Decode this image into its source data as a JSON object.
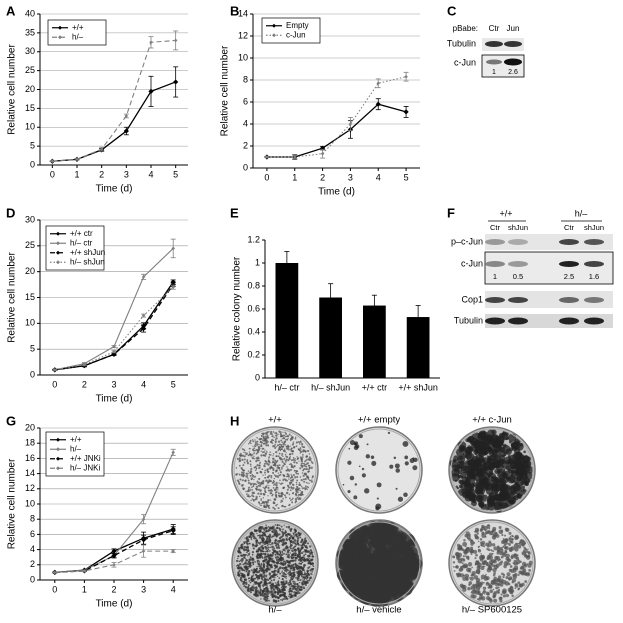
{
  "chart_data": [
    {
      "type": "line",
      "panel": "A",
      "y_label": "Relative cell number",
      "x_label": "Time (d)",
      "x": [
        0,
        1,
        2,
        3,
        4,
        5
      ],
      "xlim": [
        -0.5,
        5.5
      ],
      "xticks": [
        0,
        1,
        2,
        3,
        4,
        5
      ],
      "ylim": [
        0,
        40
      ],
      "yticks": [
        0,
        5,
        10,
        15,
        20,
        25,
        30,
        35,
        40
      ],
      "grid": true,
      "series": [
        {
          "name": "+/+",
          "color": "#000000",
          "line_style": "solid",
          "values": [
            1,
            1.5,
            4,
            9,
            19.5,
            22
          ],
          "errors": [
            0.1,
            0.2,
            0.4,
            1,
            4,
            4
          ]
        },
        {
          "name": "h/–",
          "color": "#808080",
          "line_style": "dashed",
          "values": [
            1,
            1.5,
            4.2,
            13,
            32.5,
            33
          ],
          "errors": [
            0.1,
            0.2,
            0.5,
            0.5,
            1.5,
            2.5
          ]
        }
      ]
    },
    {
      "type": "line",
      "panel": "B",
      "y_label": "Relative cell number",
      "x_label": "Time (d)",
      "x": [
        0,
        1,
        2,
        3,
        4,
        5
      ],
      "xlim": [
        -0.5,
        5.5
      ],
      "xticks": [
        0,
        1,
        2,
        3,
        4,
        5
      ],
      "ylim": [
        0,
        14
      ],
      "yticks": [
        0,
        2,
        4,
        6,
        8,
        10,
        12,
        14
      ],
      "grid": true,
      "series": [
        {
          "name": "Empty",
          "color": "#000000",
          "line_style": "solid",
          "values": [
            1,
            1,
            1.8,
            3.5,
            5.8,
            5.1
          ],
          "errors": [
            0.05,
            0.2,
            0.15,
            0.8,
            0.5,
            0.5
          ]
        },
        {
          "name": "c-Jun",
          "color": "#808080",
          "line_style": "dotted",
          "values": [
            1,
            1,
            1.3,
            4,
            7.7,
            8.3
          ],
          "errors": [
            0.05,
            0.15,
            0.4,
            0.6,
            0.4,
            0.4
          ]
        }
      ]
    },
    {
      "type": "line",
      "panel": "D",
      "y_label": "Relative cell number",
      "x_label": "Time (d)",
      "categories": [
        "0",
        "2",
        "3",
        "4",
        "5"
      ],
      "ylim": [
        0,
        30
      ],
      "yticks": [
        0,
        5,
        10,
        15,
        20,
        25,
        30
      ],
      "grid": true,
      "series": [
        {
          "name": "+/+ ctr",
          "color": "#000000",
          "line_style": "solid",
          "values": [
            1,
            1.8,
            4,
            9.5,
            18
          ],
          "errors": [
            0.1,
            0.2,
            0.2,
            0.6,
            0.4
          ]
        },
        {
          "name": "h/– ctr",
          "color": "#808080",
          "line_style": "solid",
          "values": [
            1,
            2.2,
            5.5,
            19,
            24.5
          ],
          "errors": [
            0.1,
            0.2,
            0.2,
            0.5,
            1.8
          ]
        },
        {
          "name": "+/+ shJun",
          "color": "#000000",
          "line_style": "dashed",
          "values": [
            1,
            1.8,
            4,
            9,
            17.5
          ],
          "errors": [
            0.1,
            0.2,
            0.2,
            0.7,
            0.4
          ]
        },
        {
          "name": "h/– shJun",
          "color": "#808080",
          "line_style": "dotted",
          "values": [
            1,
            2,
            4.5,
            11.5,
            17
          ],
          "errors": [
            0.1,
            0.2,
            0.2,
            0.3,
            0.4
          ]
        }
      ]
    },
    {
      "type": "bar",
      "panel": "E",
      "y_label": "Relative colony number",
      "categories": [
        "h/– ctr",
        "h/– shJun",
        "+/+ ctr",
        "+/+ shJun"
      ],
      "values": [
        1,
        0.7,
        0.63,
        0.53
      ],
      "errors": [
        0.1,
        0.12,
        0.09,
        0.1
      ],
      "color": "#000000",
      "ylim": [
        0,
        1.2
      ],
      "yticks": [
        0,
        0.2,
        0.4,
        0.6,
        0.8,
        1,
        1.2
      ],
      "grid": false
    },
    {
      "type": "line",
      "panel": "G",
      "y_label": "Relative cell number",
      "x_label": "Time (d)",
      "x": [
        0,
        1,
        2,
        3,
        4
      ],
      "xlim": [
        -0.5,
        4.5
      ],
      "xticks": [
        0,
        1,
        2,
        3,
        4
      ],
      "ylim": [
        0,
        20
      ],
      "yticks": [
        0,
        2,
        4,
        6,
        8,
        10,
        12,
        14,
        16,
        18,
        20
      ],
      "grid": true,
      "series": [
        {
          "name": "+/+",
          "color": "#000000",
          "line_style": "solid",
          "values": [
            1,
            1.3,
            3.8,
            5.5,
            6.7
          ],
          "errors": [
            0.05,
            0.1,
            0.3,
            0.8,
            0.6
          ]
        },
        {
          "name": "h/–",
          "color": "#808080",
          "line_style": "solid",
          "values": [
            1,
            1.3,
            3.2,
            8,
            16.8
          ],
          "errors": [
            0.05,
            0.1,
            0.2,
            0.6,
            0.4
          ]
        },
        {
          "name": "+/+ JNKi",
          "color": "#000000",
          "line_style": "dashed",
          "values": [
            1,
            1.2,
            3.2,
            5.3,
            6.5
          ],
          "errors": [
            0.05,
            0.1,
            0.3,
            0.6,
            0.5
          ]
        },
        {
          "name": "h/– JNKi",
          "color": "#808080",
          "line_style": "dashed",
          "values": [
            1,
            1.2,
            2,
            3.8,
            3.8
          ],
          "errors": [
            0.05,
            0.1,
            0.3,
            0.8,
            0.2
          ]
        }
      ]
    }
  ],
  "blot_c": {
    "panel": "C",
    "header": "pBabe:",
    "lanes": [
      "Ctr",
      "Jun"
    ],
    "rows": [
      "Tubulin",
      "c-Jun"
    ],
    "quant": [
      1,
      2.6
    ]
  },
  "blot_f": {
    "panel": "F",
    "groups": [
      "+/+",
      "h/–"
    ],
    "lanes": [
      "Ctr",
      "shJun",
      "Ctr",
      "shJun"
    ],
    "rows": [
      "p–c-Jun",
      "c-Jun",
      "Cop1",
      "Tubulin"
    ],
    "quant": [
      1,
      0.5,
      2.5,
      1.6
    ]
  },
  "photos": {
    "panel": "H",
    "labels": [
      "+/+",
      "+/+ empty",
      "+/+ c-Jun",
      "h/–",
      "h/– vehicle",
      "h/– SP600125"
    ]
  }
}
